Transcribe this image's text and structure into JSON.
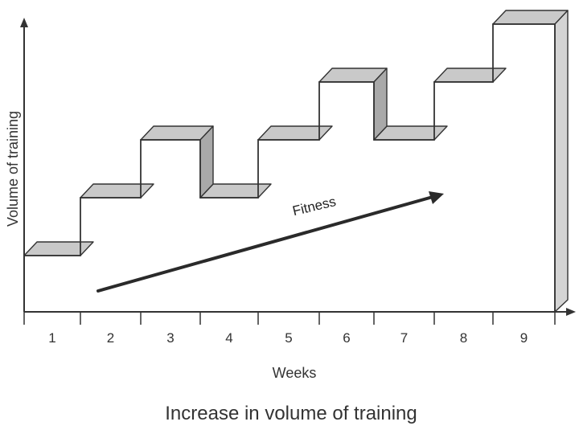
{
  "chart_data": {
    "type": "line",
    "step": true,
    "title": "",
    "caption": "Increase in volume of training",
    "xlabel": "Weeks",
    "ylabel": "Volume of training",
    "categories": [
      "1",
      "2",
      "3",
      "4",
      "5",
      "6",
      "7",
      "8",
      "9"
    ],
    "values": [
      1,
      2,
      3,
      2,
      3,
      4,
      3,
      4,
      5
    ],
    "ylim": [
      0,
      5.3
    ],
    "grid": false,
    "annotation": {
      "label": "Fitness",
      "type": "trend-arrow"
    },
    "colors": {
      "step_face": "#c9c9c9",
      "step_side": "#a9a9a9",
      "line": "#333333"
    }
  }
}
